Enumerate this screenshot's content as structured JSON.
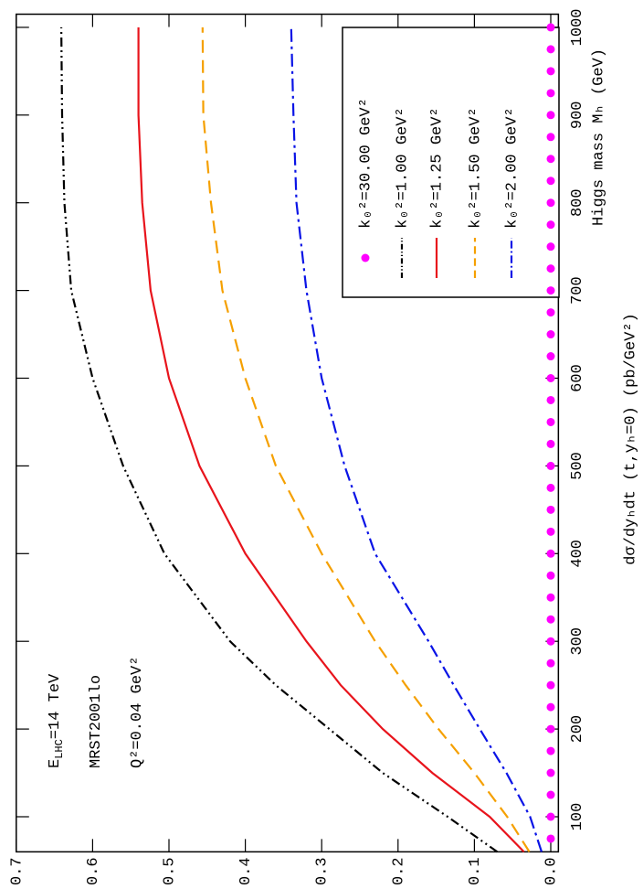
{
  "chart_data": {
    "type": "line",
    "x_label": "Higgs mass Mₕ (GeV)",
    "y_label": "dσ/dyₕdt  (t,yₕ=0)  (pb/GeV²)",
    "annotations": [
      {
        "base": "E",
        "sub": "LHC",
        "text": "=14 TeV"
      },
      {
        "text": "MRST2001lo"
      },
      {
        "text": "Q²=0.04 GeV²"
      }
    ],
    "xlim": [
      60,
      1015
    ],
    "xticks": [
      100,
      200,
      300,
      400,
      500,
      600,
      700,
      800,
      900,
      1000
    ],
    "ylim": [
      -0.01,
      0.7
    ],
    "yticks": [
      {
        "value": 0,
        "label": "0.0"
      },
      0.1,
      0.2,
      0.3,
      0.4,
      0.5,
      0.6,
      0.7
    ],
    "series": [
      {
        "name": "k₀²=30.00 GeV²",
        "color": "#ff00ff",
        "marker": "dot",
        "x": [
          75,
          100,
          125,
          150,
          175,
          200,
          225,
          250,
          275,
          300,
          325,
          350,
          375,
          400,
          425,
          450,
          475,
          500,
          525,
          550,
          575,
          600,
          625,
          650,
          675,
          700,
          725,
          750,
          775,
          800,
          825,
          850,
          875,
          900,
          925,
          950,
          975,
          1000
        ],
        "values": [
          0,
          0,
          0,
          0,
          0,
          0,
          0,
          0,
          0,
          0,
          0,
          0,
          0,
          0,
          0,
          0,
          0,
          0,
          0,
          0,
          0,
          0,
          0,
          0,
          0,
          0,
          0,
          0,
          0,
          0,
          0,
          0,
          0,
          0,
          0,
          0,
          0,
          0
        ]
      },
      {
        "name": "k₀²=1.00 GeV²",
        "color": "#000000",
        "dash": "10,4,2,4,2,4",
        "x": [
          60,
          100,
          150,
          200,
          250,
          300,
          400,
          500,
          600,
          700,
          800,
          900,
          1000
        ],
        "values": [
          0.07,
          0.135,
          0.22,
          0.29,
          0.36,
          0.42,
          0.506,
          0.56,
          0.6,
          0.628,
          0.637,
          0.64,
          0.641
        ]
      },
      {
        "name": "k₀²=1.25 GeV²",
        "color": "#e8141c",
        "dash": "none",
        "x": [
          60,
          100,
          150,
          200,
          250,
          300,
          400,
          500,
          600,
          700,
          800,
          900,
          1000
        ],
        "values": [
          0.035,
          0.08,
          0.155,
          0.22,
          0.275,
          0.32,
          0.4,
          0.46,
          0.5,
          0.524,
          0.535,
          0.54,
          0.54
        ]
      },
      {
        "name": "k₀²=1.50 GeV²",
        "color": "#f5a000",
        "dash": "14,8",
        "x": [
          60,
          100,
          150,
          200,
          250,
          300,
          400,
          500,
          600,
          700,
          800,
          900,
          1000
        ],
        "values": [
          0.028,
          0.057,
          0.1,
          0.147,
          0.19,
          0.23,
          0.3,
          0.36,
          0.4,
          0.43,
          0.445,
          0.455,
          0.456
        ]
      },
      {
        "name": "k₀²=2.00 GeV²",
        "color": "#0a14e6",
        "dash": "14,5,3,5",
        "x": [
          60,
          100,
          150,
          200,
          250,
          300,
          400,
          500,
          600,
          700,
          800,
          900,
          1000
        ],
        "values": [
          0.012,
          0.027,
          0.058,
          0.093,
          0.127,
          0.16,
          0.23,
          0.27,
          0.3,
          0.32,
          0.333,
          0.337,
          0.34
        ]
      }
    ]
  }
}
